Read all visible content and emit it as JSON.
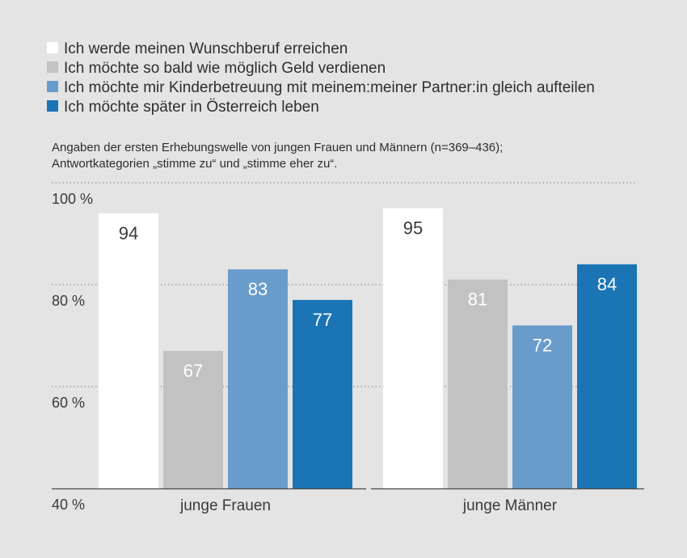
{
  "chart_data": {
    "type": "bar",
    "subtitle_lines": [
      "Angaben der ersten Erhebungswelle von jungen Frauen und Männern (n=369–436);",
      "Antwortkategorien „stimme zu“ und „stimme eher zu“."
    ],
    "categories": [
      "junge Frauen",
      "junge Männer"
    ],
    "series": [
      {
        "name": "Ich werde meinen Wunschberuf erreichen",
        "color": "#ffffff",
        "label_color": "#3a3a3a",
        "values": [
          94,
          95
        ]
      },
      {
        "name": "Ich möchte so bald wie möglich Geld verdienen",
        "color": "#c2c2c2",
        "label_color": "#ffffff",
        "values": [
          67,
          81
        ]
      },
      {
        "name": "Ich möchte mir Kinderbetreuung mit meinem:meiner Partner:in gleich aufteilen",
        "color": "#6a9ccb",
        "label_color": "#ffffff",
        "values": [
          83,
          72
        ]
      },
      {
        "name": "Ich möchte später in Österreich leben",
        "color": "#1b75b5",
        "label_color": "#ffffff",
        "values": [
          77,
          84
        ]
      }
    ],
    "ylim": [
      40,
      100
    ],
    "yticks": [
      100,
      80,
      60,
      40
    ],
    "ytick_labels": [
      "100 %",
      "80 %",
      "60 %",
      "40 %"
    ],
    "grid": true,
    "legend_position": "top-left"
  }
}
